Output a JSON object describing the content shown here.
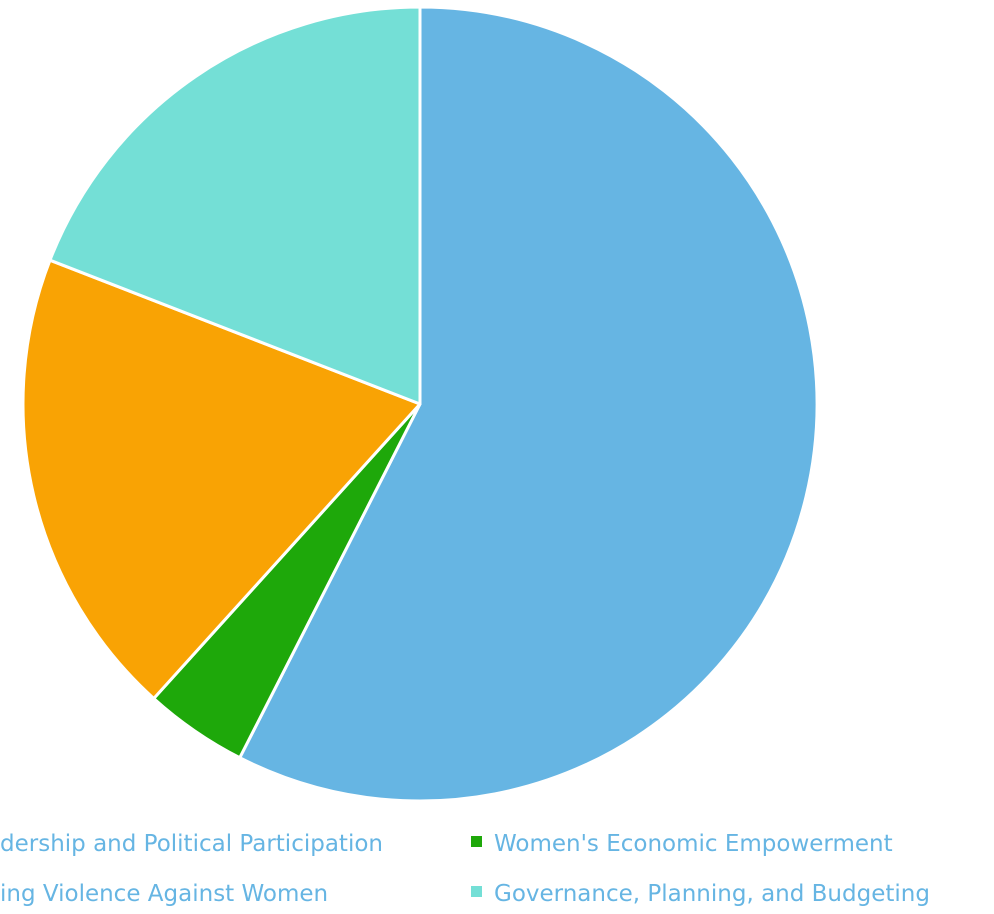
{
  "chart_data": {
    "type": "pie",
    "title": "",
    "slices": [
      {
        "label": "Women's Leadership and Political Participation",
        "value": 57.5,
        "color": "#66B5E3"
      },
      {
        "label": "Women's Economic Empowerment",
        "value": 4.2,
        "color": "#1EA80A"
      },
      {
        "label": "Ending Violence Against Women",
        "value": 19.2,
        "color": "#F9A304"
      },
      {
        "label": "Governance, Planning, and Budgeting",
        "value": 19.1,
        "color": "#74DFD6"
      }
    ],
    "legend": {
      "placement": "bottom",
      "visible_labels": [
        "dership and Political Participation",
        "Women's Economic Empowerment",
        "ing Violence Against Women",
        "Governance, Planning, and Budgeting"
      ]
    },
    "text_color": "#66B5E3"
  }
}
